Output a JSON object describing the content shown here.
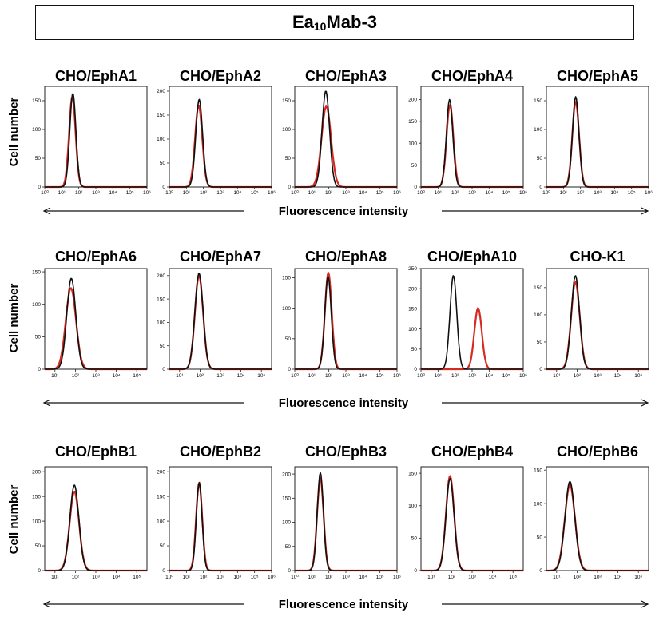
{
  "figure_title": {
    "main": "Ea",
    "sub": "10",
    "rest": "Mab-3"
  },
  "y_axis_label": "Cell number",
  "x_axis_label": "Fluorescence intensity",
  "colors": {
    "sample": "#d42a20",
    "control": "#111111"
  },
  "chart_data": [
    {
      "type": "line",
      "title": "CHO/EphA1",
      "row": 0,
      "ylim": [
        0,
        175
      ],
      "yticks": [
        0,
        50,
        100,
        150
      ],
      "xlim": [
        0,
        6
      ],
      "xticks": [
        "10⁰",
        "10¹",
        "10²",
        "10³",
        "10⁴",
        "10⁵",
        "10⁶"
      ],
      "series": [
        {
          "name": "control",
          "peak_log_x": 1.65,
          "peak_y": 163,
          "width": 0.18
        },
        {
          "name": "sample",
          "peak_log_x": 1.62,
          "peak_y": 157,
          "width": 0.19
        }
      ]
    },
    {
      "type": "line",
      "title": "CHO/EphA2",
      "row": 0,
      "ylim": [
        0,
        210
      ],
      "yticks": [
        0,
        50,
        100,
        150,
        200
      ],
      "xlim": [
        0,
        6
      ],
      "xticks": [
        "10⁰",
        "10¹",
        "10²",
        "10³",
        "10⁴",
        "10⁵",
        "10⁶"
      ],
      "series": [
        {
          "name": "control",
          "peak_log_x": 1.75,
          "peak_y": 183,
          "width": 0.2
        },
        {
          "name": "sample",
          "peak_log_x": 1.72,
          "peak_y": 170,
          "width": 0.21
        }
      ]
    },
    {
      "type": "line",
      "title": "CHO/EphA3",
      "row": 0,
      "ylim": [
        0,
        175
      ],
      "yticks": [
        0,
        50,
        100,
        150
      ],
      "xlim": [
        0,
        6
      ],
      "xticks": [
        "10⁰",
        "10¹",
        "10²",
        "10³",
        "10⁴",
        "10⁵",
        "10⁶"
      ],
      "series": [
        {
          "name": "control",
          "peak_log_x": 1.82,
          "peak_y": 167,
          "width": 0.22
        },
        {
          "name": "sample",
          "peak_log_x": 1.85,
          "peak_y": 140,
          "width": 0.28
        }
      ]
    },
    {
      "type": "line",
      "title": "CHO/EphA4",
      "row": 0,
      "ylim": [
        0,
        230
      ],
      "yticks": [
        0,
        50,
        100,
        150,
        200
      ],
      "xlim": [
        0,
        6
      ],
      "xticks": [
        "10⁰",
        "10¹",
        "10²",
        "10³",
        "10⁴",
        "10⁵",
        "10⁶"
      ],
      "series": [
        {
          "name": "control",
          "peak_log_x": 1.68,
          "peak_y": 200,
          "width": 0.19
        },
        {
          "name": "sample",
          "peak_log_x": 1.7,
          "peak_y": 188,
          "width": 0.2
        }
      ]
    },
    {
      "type": "line",
      "title": "CHO/EphA5",
      "row": 0,
      "ylim": [
        0,
        175
      ],
      "yticks": [
        0,
        50,
        100,
        150
      ],
      "xlim": [
        0,
        6
      ],
      "xticks": [
        "10⁰",
        "10¹",
        "10²",
        "10³",
        "10⁴",
        "10⁵",
        "10⁶"
      ],
      "series": [
        {
          "name": "control",
          "peak_log_x": 1.72,
          "peak_y": 157,
          "width": 0.19
        },
        {
          "name": "sample",
          "peak_log_x": 1.72,
          "peak_y": 148,
          "width": 0.2
        }
      ]
    },
    {
      "type": "line",
      "title": "CHO/EphA6",
      "row": 1,
      "ylim": [
        0,
        155
      ],
      "yticks": [
        0,
        50,
        100,
        150
      ],
      "xlim": [
        0.5,
        5.5
      ],
      "xticks": [
        "10¹",
        "10²",
        "10³",
        "10⁴",
        "10⁵"
      ],
      "series": [
        {
          "name": "control",
          "peak_log_x": 1.8,
          "peak_y": 140,
          "width": 0.22
        },
        {
          "name": "sample",
          "peak_log_x": 1.78,
          "peak_y": 125,
          "width": 0.25
        }
      ]
    },
    {
      "type": "line",
      "title": "CHO/EphA7",
      "row": 1,
      "ylim": [
        0,
        215
      ],
      "yticks": [
        0,
        50,
        100,
        150,
        200
      ],
      "xlim": [
        0.5,
        5.5
      ],
      "xticks": [
        "10¹",
        "10²",
        "10³",
        "10⁴",
        "10⁵"
      ],
      "series": [
        {
          "name": "control",
          "peak_log_x": 1.95,
          "peak_y": 205,
          "width": 0.2
        },
        {
          "name": "sample",
          "peak_log_x": 1.95,
          "peak_y": 200,
          "width": 0.2
        }
      ]
    },
    {
      "type": "line",
      "title": "CHO/EphA8",
      "row": 1,
      "ylim": [
        0,
        165
      ],
      "yticks": [
        0,
        50,
        100,
        150
      ],
      "xlim": [
        0,
        6
      ],
      "xticks": [
        "10⁰",
        "10¹",
        "10²",
        "10³",
        "10⁴",
        "10⁵",
        "10⁶"
      ],
      "series": [
        {
          "name": "control",
          "peak_log_x": 1.95,
          "peak_y": 152,
          "width": 0.19
        },
        {
          "name": "sample",
          "peak_log_x": 1.97,
          "peak_y": 158,
          "width": 0.2
        }
      ]
    },
    {
      "type": "line",
      "title": "CHO/EphA10",
      "row": 1,
      "ylim": [
        0,
        250
      ],
      "yticks": [
        0,
        50,
        100,
        150,
        200,
        250
      ],
      "xlim": [
        0,
        6
      ],
      "xticks": [
        "10⁰",
        "10¹",
        "10²",
        "10³",
        "10⁴",
        "10⁵",
        "10⁶"
      ],
      "series": [
        {
          "name": "control",
          "peak_log_x": 1.9,
          "peak_y": 233,
          "width": 0.2
        },
        {
          "name": "sample",
          "peak_log_x": 3.35,
          "peak_y": 152,
          "width": 0.22
        }
      ]
    },
    {
      "type": "line",
      "title": "CHO-K1",
      "row": 1,
      "ylim": [
        0,
        185
      ],
      "yticks": [
        0,
        50,
        100,
        150
      ],
      "xlim": [
        0.5,
        5.5
      ],
      "xticks": [
        "10¹",
        "10²",
        "10³",
        "10⁴",
        "10⁵"
      ],
      "series": [
        {
          "name": "control",
          "peak_log_x": 1.92,
          "peak_y": 172,
          "width": 0.2
        },
        {
          "name": "sample",
          "peak_log_x": 1.92,
          "peak_y": 160,
          "width": 0.21
        }
      ]
    },
    {
      "type": "line",
      "title": "CHO/EphB1",
      "row": 2,
      "ylim": [
        0,
        210
      ],
      "yticks": [
        0,
        50,
        100,
        150,
        200
      ],
      "xlim": [
        0.5,
        5.5
      ],
      "xticks": [
        "10¹",
        "10²",
        "10³",
        "10⁴",
        "10⁵"
      ],
      "series": [
        {
          "name": "control",
          "peak_log_x": 1.95,
          "peak_y": 173,
          "width": 0.22
        },
        {
          "name": "sample",
          "peak_log_x": 1.95,
          "peak_y": 160,
          "width": 0.23
        }
      ]
    },
    {
      "type": "line",
      "title": "CHO/EphB2",
      "row": 2,
      "ylim": [
        0,
        210
      ],
      "yticks": [
        0,
        50,
        100,
        150,
        200
      ],
      "xlim": [
        0,
        6
      ],
      "xticks": [
        "10⁰",
        "10¹",
        "10²",
        "10³",
        "10⁴",
        "10⁵",
        "10⁶"
      ],
      "series": [
        {
          "name": "control",
          "peak_log_x": 1.75,
          "peak_y": 178,
          "width": 0.17
        },
        {
          "name": "sample",
          "peak_log_x": 1.75,
          "peak_y": 178,
          "width": 0.18
        }
      ]
    },
    {
      "type": "line",
      "title": "CHO/EphB3",
      "row": 2,
      "ylim": [
        0,
        215
      ],
      "yticks": [
        0,
        50,
        100,
        150,
        200
      ],
      "xlim": [
        0,
        6
      ],
      "xticks": [
        "10⁰",
        "10¹",
        "10²",
        "10³",
        "10⁴",
        "10⁵",
        "10⁶"
      ],
      "series": [
        {
          "name": "control",
          "peak_log_x": 1.5,
          "peak_y": 203,
          "width": 0.18
        },
        {
          "name": "sample",
          "peak_log_x": 1.5,
          "peak_y": 192,
          "width": 0.19
        }
      ]
    },
    {
      "type": "line",
      "title": "CHO/EphB4",
      "row": 2,
      "ylim": [
        0,
        160
      ],
      "yticks": [
        0,
        50,
        100,
        150
      ],
      "xlim": [
        0.5,
        5.5
      ],
      "xticks": [
        "10¹",
        "10²",
        "10³",
        "10⁴",
        "10⁵"
      ],
      "series": [
        {
          "name": "control",
          "peak_log_x": 1.92,
          "peak_y": 142,
          "width": 0.2
        },
        {
          "name": "sample",
          "peak_log_x": 1.92,
          "peak_y": 146,
          "width": 0.2
        }
      ]
    },
    {
      "type": "line",
      "title": "CHO/EphB6",
      "row": 2,
      "ylim": [
        0,
        155
      ],
      "yticks": [
        0,
        50,
        100,
        150
      ],
      "xlim": [
        0.5,
        5.5
      ],
      "xticks": [
        "10¹",
        "10²",
        "10³",
        "10⁴",
        "10⁵"
      ],
      "series": [
        {
          "name": "control",
          "peak_log_x": 1.65,
          "peak_y": 133,
          "width": 0.24
        },
        {
          "name": "sample",
          "peak_log_x": 1.65,
          "peak_y": 128,
          "width": 0.25
        }
      ]
    }
  ]
}
